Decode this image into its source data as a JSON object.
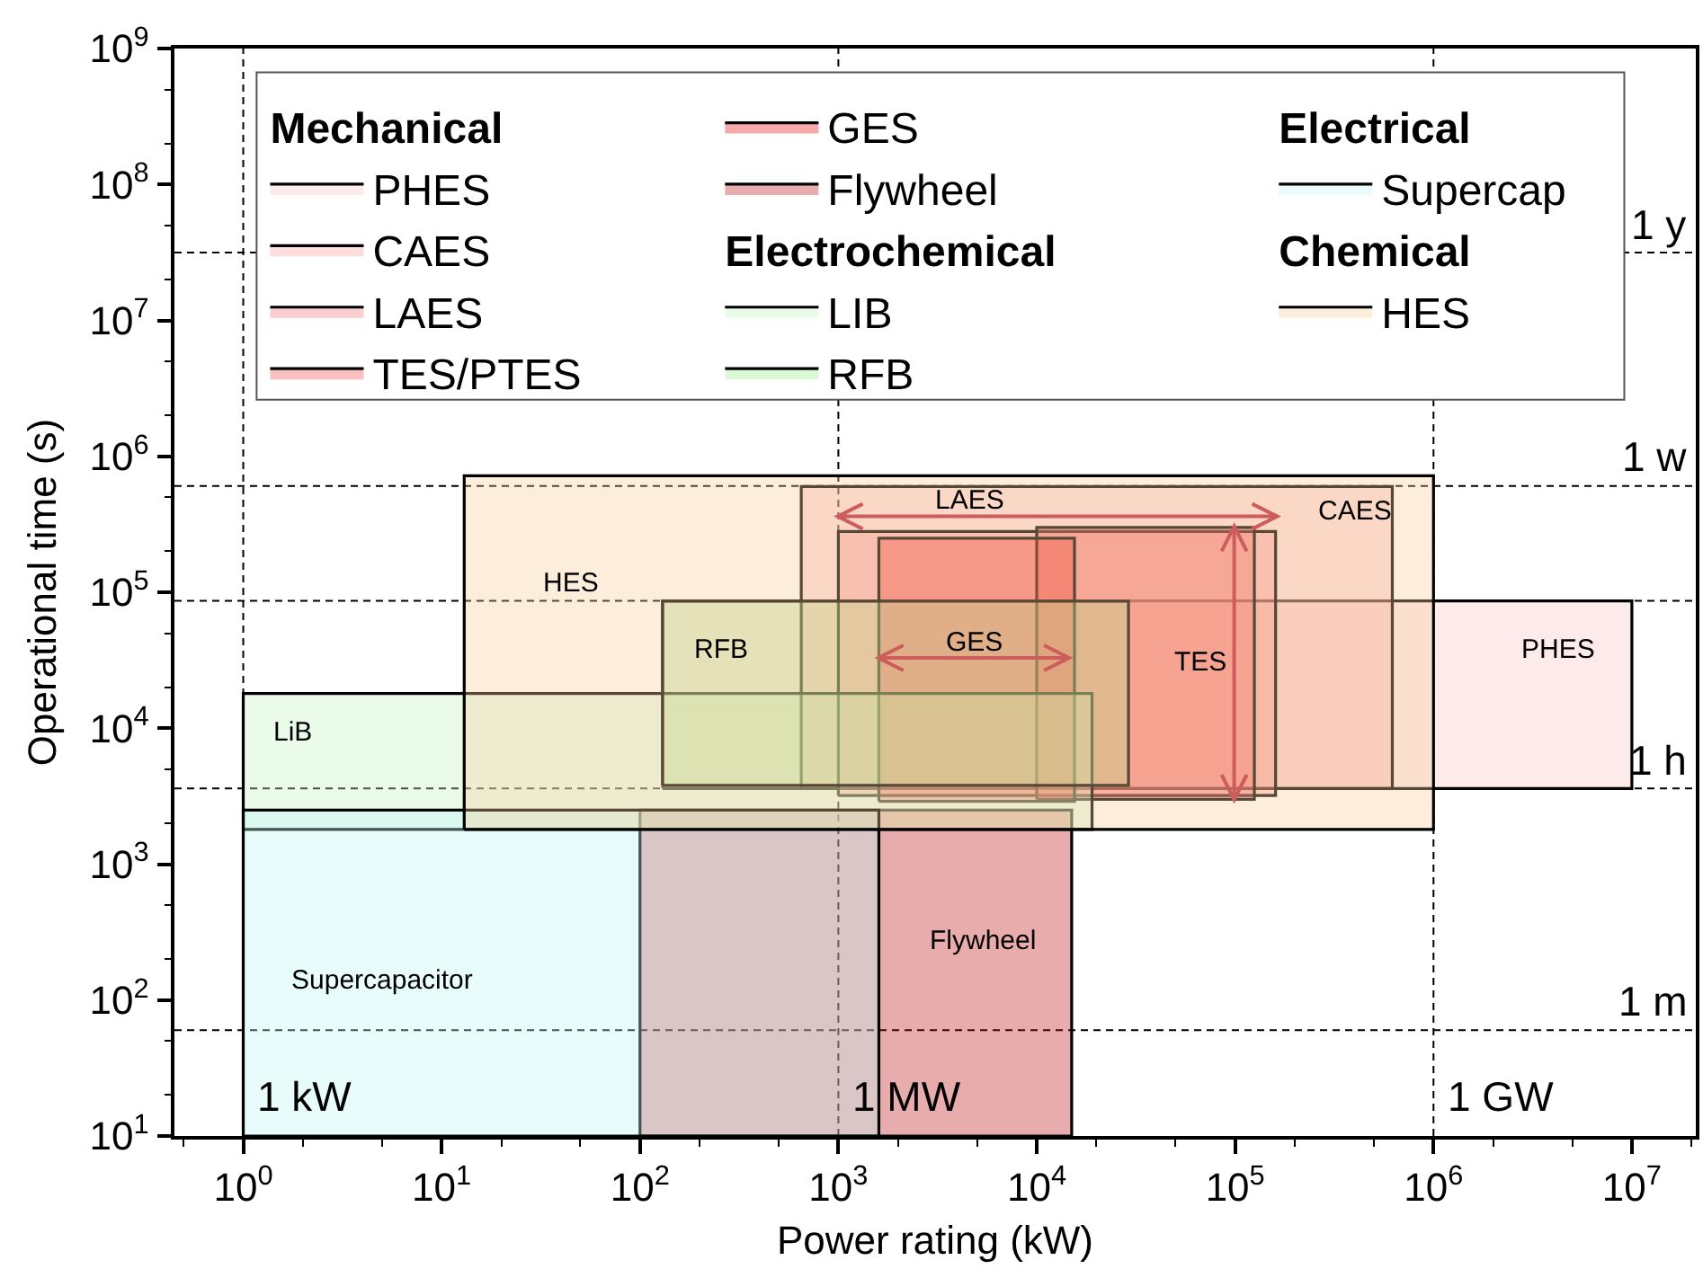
{
  "chart_data": {
    "type": "area",
    "xlabel": "Power rating (kW)",
    "ylabel": "Operational time (s)",
    "log": "xy",
    "xlim": [
      0.45,
      21000000
    ],
    "ylim": [
      10,
      1000000000
    ],
    "xticks": [
      {
        "value": 1,
        "label": "10$^{0}$"
      },
      {
        "value": 10,
        "label": "10$^{1}$"
      },
      {
        "value": 100,
        "label": "10$^{2}$"
      },
      {
        "value": 1000,
        "label": "10$^{3}$"
      },
      {
        "value": 10000,
        "label": "10$^{4}$"
      },
      {
        "value": 100000,
        "label": "10$^{5}$"
      },
      {
        "value": 1000000,
        "label": "10$^{6}$"
      },
      {
        "value": 10000000,
        "label": "10$^{7}$"
      }
    ],
    "yticks": [
      {
        "value": 10,
        "label": "10$^{1}$"
      },
      {
        "value": 100,
        "label": "10$^{2}$"
      },
      {
        "value": 1000,
        "label": "10$^{3}$"
      },
      {
        "value": 10000,
        "label": "10$^{4}$"
      },
      {
        "value": 100000,
        "label": "10$^{5}$"
      },
      {
        "value": 1000000,
        "label": "10$^{6}$"
      },
      {
        "value": 10000000,
        "label": "10$^{7}$"
      },
      {
        "value": 100000000,
        "label": "10$^{8}$"
      },
      {
        "value": 1000000000,
        "label": "10$^{9}$"
      }
    ],
    "legend": "top",
    "legend_title": [
      "Mechanical",
      null,
      null,
      null,
      null,
      null,
      "Electrochemical",
      null,
      "Electrical",
      "Chemical"
    ],
    "series": [
      {
        "name": "PHES",
        "color": "#fdeaea",
        "x": [
          130,
          10000000,
          10000000,
          130,
          130
        ],
        "values": [
          3600,
          3600,
          86400,
          86400,
          3600
        ]
      },
      {
        "name": "CAES",
        "color": "#fcdcdd",
        "x": [
          650,
          620000,
          620000,
          650,
          650
        ],
        "values": [
          3600,
          3600,
          600000,
          600000,
          3600
        ]
      },
      {
        "name": "LAES",
        "color": "#fbcfd0",
        "x": [
          1000,
          160000,
          160000,
          1000,
          1000
        ],
        "values": [
          3200,
          3200,
          280000,
          280000,
          3200
        ]
      },
      {
        "name": "TES/PTES",
        "color": "#fac0c1",
        "x": [
          10000,
          125000,
          125000,
          10000,
          10000
        ],
        "values": [
          3000,
          3000,
          300000,
          300000,
          3000
        ]
      },
      {
        "name": "GES",
        "color": "#f7aaaa",
        "x": [
          1600,
          15500,
          15500,
          1600,
          1600
        ],
        "values": [
          2900,
          2900,
          250000,
          250000,
          2900
        ]
      },
      {
        "name": "Flywheel",
        "color": "#e9acad",
        "x": [
          100,
          15000,
          15000,
          100,
          100
        ],
        "values": [
          10,
          10,
          2500,
          2500,
          10
        ]
      },
      {
        "name": "LIB",
        "color": "#eafbea",
        "x": [
          1,
          19000,
          19000,
          1,
          1
        ],
        "values": [
          1800,
          1800,
          18000,
          18000,
          1800
        ]
      },
      {
        "name": "RFB",
        "color": "#dcf9d6",
        "x": [
          130,
          29000,
          29000,
          130,
          130
        ],
        "values": [
          3800,
          3800,
          86000,
          86000,
          3800
        ]
      },
      {
        "name": "Supercap",
        "color": "#e9fcfc",
        "x": [
          1,
          1600,
          1600,
          1,
          1
        ],
        "values": [
          10,
          10,
          2500,
          2500,
          10
        ]
      },
      {
        "name": "HES",
        "color": "#fdeedc",
        "x": [
          13,
          1000000,
          1000000,
          13,
          13
        ],
        "values": [
          1800,
          1800,
          720000,
          720000,
          1800
        ]
      }
    ],
    "annotations": [
      "HES",
      "RFB",
      "LiB",
      "Supercapacitor",
      "Flywheel",
      "GES",
      "LAES",
      "CAES",
      "TES",
      "PHES"
    ],
    "ref_lines": [
      {
        "axis": "x",
        "value": 1,
        "label": "1 kW",
        "line_style": "dashed"
      },
      {
        "axis": "x",
        "value": 1000,
        "label": "1 MW",
        "line_style": "dashed"
      },
      {
        "axis": "x",
        "value": 1000000,
        "label": "1 GW",
        "line_style": "dashed"
      },
      {
        "axis": "y",
        "value": 60,
        "label": "1 m",
        "line_style": "dashed"
      },
      {
        "axis": "y",
        "value": 3600,
        "label": "1 h",
        "line_style": "dashed"
      },
      {
        "axis": "y",
        "value": 86400,
        "line_style": "dashed"
      },
      {
        "axis": "y",
        "value": 604800,
        "label": "1 w",
        "line_style": "dashed"
      },
      {
        "axis": "y",
        "value": 31536000,
        "label": "1 y",
        "line_style": "dashed"
      }
    ]
  }
}
